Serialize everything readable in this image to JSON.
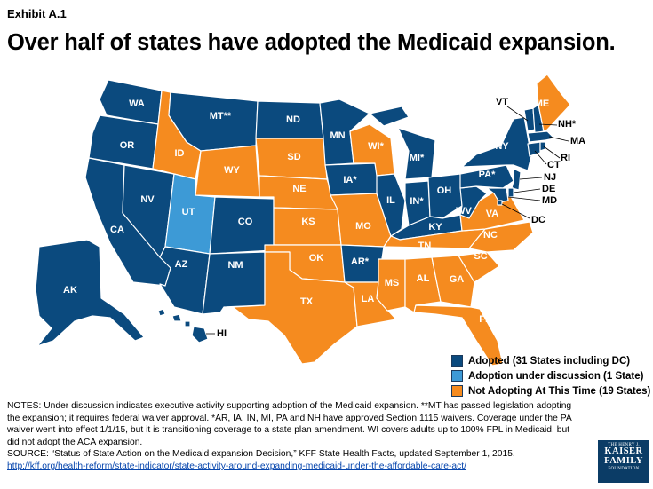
{
  "exhibit": "Exhibit A.1",
  "title": "Over half of states have adopted the Medicaid expansion.",
  "colors": {
    "adopted": "#0b4a7e",
    "under_discussion": "#3d9ad6",
    "not_adopting": "#f58b1f"
  },
  "legend": [
    {
      "label": "Adopted (31 States including DC)",
      "status": "adopted"
    },
    {
      "label": "Adoption under discussion (1 State)",
      "status": "under_discussion"
    },
    {
      "label": "Not Adopting At This Time (19 States)",
      "status": "not_adopting"
    }
  ],
  "states": {
    "WA": "WA",
    "OR": "OR",
    "CA": "CA",
    "NV": "NV",
    "ID": "ID",
    "MT": "MT**",
    "WY": "WY",
    "UT": "UT",
    "AZ": "AZ",
    "CO": "CO",
    "NM": "NM",
    "ND": "ND",
    "SD": "SD",
    "NE": "NE",
    "KS": "KS",
    "OK": "OK",
    "TX": "TX",
    "MN": "MN",
    "IA": "IA*",
    "MO": "MO",
    "AR": "AR*",
    "LA": "LA",
    "WI": "WI*",
    "IL": "IL",
    "MI": "MI*",
    "IN": "IN*",
    "OH": "OH",
    "KY": "KY",
    "TN": "TN",
    "MS": "MS",
    "AL": "AL",
    "GA": "GA",
    "FL": "FL",
    "SC": "SC",
    "NC": "NC",
    "VA": "VA",
    "WV": "WV",
    "PA": "PA*",
    "NY": "NY",
    "VT": "VT",
    "ME": "ME",
    "NH": "NH*",
    "MA": "MA",
    "RI": "RI",
    "CT": "CT",
    "NJ": "NJ",
    "DE": "DE",
    "MD": "MD",
    "DC": "DC",
    "AK": "AK",
    "HI": "HI"
  },
  "notes": {
    "text": "NOTES: Under discussion indicates executive activity supporting adoption of the Medicaid expansion. **MT has passed legislation adopting the expansion; it requires federal waiver approval. *AR, IA, IN, MI, PA and NH have approved Section 1115 waivers. Coverage under the PA waiver went into effect 1/1/15, but it is transitioning coverage to a state plan amendment. WI covers adults up to 100% FPL in Medicaid, but did not adopt the ACA expansion.",
    "source": "SOURCE: “Status of State Action on the Medicaid expansion Decision,” KFF State Health Facts, updated September 1, 2015.",
    "link": "http://kff.org/health-reform/state-indicator/state-activity-around-expanding-medicaid-under-the-affordable-care-act/"
  },
  "logo": {
    "line1": "THE HENRY J.",
    "line2": "KAISER",
    "line3": "FAMILY",
    "line4": "FOUNDATION"
  }
}
